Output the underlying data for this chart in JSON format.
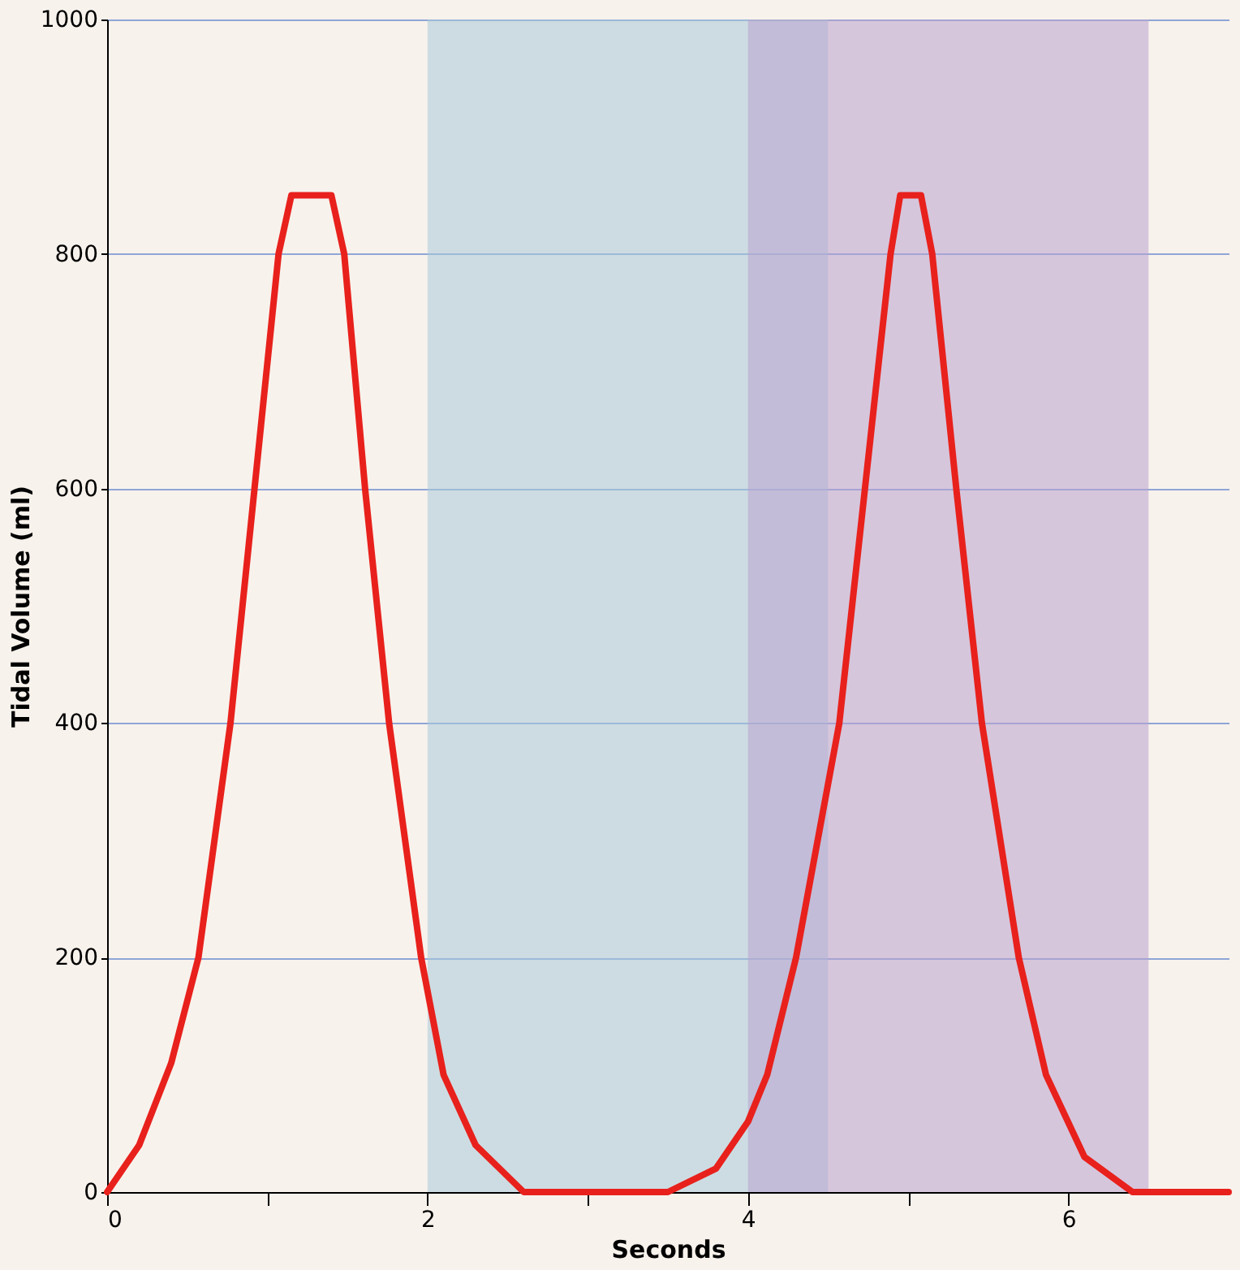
{
  "chart_data": {
    "type": "line",
    "xlabel": "Seconds",
    "ylabel": "Tidal Volume (ml)",
    "x": [
      0,
      0.2,
      0.4,
      0.57,
      0.77,
      0.92,
      1.07,
      1.15,
      1.28,
      1.4,
      1.48,
      1.61,
      1.76,
      1.96,
      2.1,
      2.3,
      2.6,
      3.0,
      3.5,
      3.8,
      4.0,
      4.12,
      4.3,
      4.57,
      4.73,
      4.89,
      4.95,
      5.02,
      5.08,
      5.15,
      5.3,
      5.46,
      5.69,
      5.86,
      6.1,
      6.4,
      7.0
    ],
    "series": [
      {
        "color": "#e8211c",
        "values": [
          0,
          40,
          110,
          200,
          400,
          600,
          800,
          850,
          850,
          850,
          800,
          600,
          400,
          200,
          100,
          40,
          0,
          0,
          0,
          20,
          60,
          100,
          200,
          400,
          600,
          800,
          850,
          850,
          850,
          800,
          600,
          400,
          200,
          100,
          30,
          0,
          0
        ]
      }
    ],
    "xlim": [
      0,
      7
    ],
    "ylim": [
      0,
      1000
    ],
    "xticks": [
      0,
      {
        "value": 1,
        "label": null
      },
      2,
      {
        "value": 3,
        "label": null
      },
      4,
      {
        "value": 5,
        "label": null
      },
      6
    ],
    "yticks": [
      0,
      200,
      400,
      600,
      800,
      1000
    ],
    "bands": [
      {
        "axis": "x",
        "from": 2,
        "to": 4.5,
        "color": "#a9cadb"
      },
      {
        "axis": "x",
        "from": 4,
        "to": 6.5,
        "color": "#b9a3cf"
      }
    ],
    "grid": "y",
    "line_style": "solid",
    "marker": "none"
  }
}
